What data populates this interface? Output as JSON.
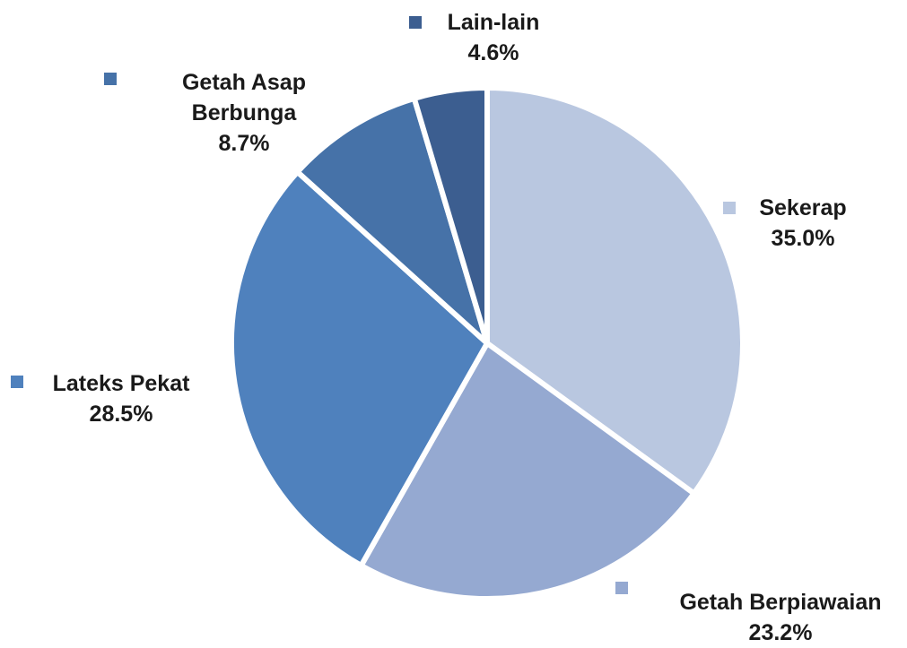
{
  "chart_data": {
    "type": "pie",
    "categories": [
      "Sekerap",
      "Getah Berpiawaian",
      "Lateks Pekat",
      "Getah Asap Berbunga",
      "Lain-lain"
    ],
    "values": [
      35.0,
      23.2,
      28.5,
      8.7,
      4.6
    ],
    "value_labels": [
      "35.0%",
      "23.2%",
      "28.5%",
      "8.7%",
      "4.6%"
    ],
    "colors": [
      "#b9c7e0",
      "#95a9d1",
      "#4f81bd",
      "#4672a8",
      "#3c5e90"
    ]
  }
}
